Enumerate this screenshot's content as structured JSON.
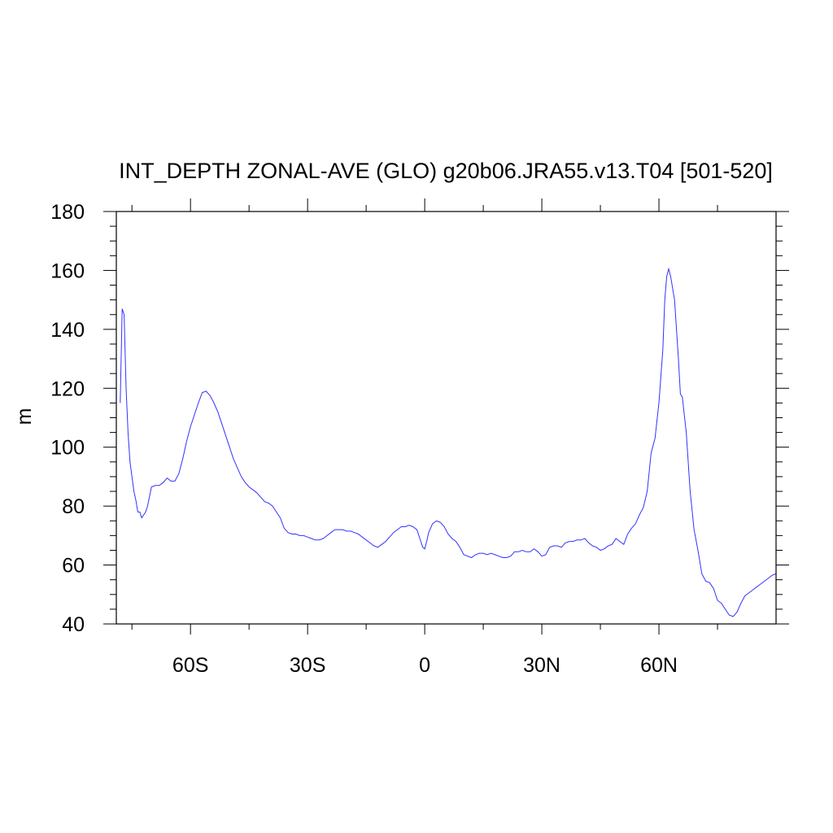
{
  "chart_data": {
    "type": "line",
    "title": "INT_DEPTH ZONAL-AVE (GLO) g20b06.JRA55.v13.T04 [501-520]",
    "xlabel": "",
    "ylabel": "m",
    "xlim": [
      -79,
      90
    ],
    "ylim": [
      40,
      180
    ],
    "x_ticks": [
      {
        "value": -60,
        "label": "60S"
      },
      {
        "value": -30,
        "label": "30S"
      },
      {
        "value": 0,
        "label": "0"
      },
      {
        "value": 30,
        "label": "30N"
      },
      {
        "value": 60,
        "label": "60N"
      }
    ],
    "y_ticks": [
      {
        "value": 40,
        "label": "40"
      },
      {
        "value": 60,
        "label": "60"
      },
      {
        "value": 80,
        "label": "80"
      },
      {
        "value": 100,
        "label": "100"
      },
      {
        "value": 120,
        "label": "120"
      },
      {
        "value": 140,
        "label": "140"
      },
      {
        "value": 160,
        "label": "160"
      },
      {
        "value": 180,
        "label": "180"
      }
    ],
    "grid": false,
    "series": [
      {
        "color": "#3232ff",
        "x": [
          -78,
          -77.5,
          -77,
          -76.5,
          -76,
          -75.5,
          -75,
          -74.5,
          -74,
          -73.5,
          -73,
          -72.5,
          -72,
          -71.5,
          -71,
          -70,
          -69,
          -68,
          -67,
          -66,
          -65,
          -64,
          -63,
          -62,
          -61,
          -60,
          -59,
          -58,
          -57,
          -56,
          -55,
          -54,
          -53,
          -52,
          -51,
          -50,
          -49,
          -48,
          -47,
          -46,
          -45,
          -44,
          -43,
          -42,
          -41,
          -40,
          -39,
          -38,
          -37,
          -36,
          -35,
          -34,
          -33,
          -32,
          -31,
          -30,
          -29,
          -28,
          -27,
          -26,
          -25,
          -24,
          -23,
          -22,
          -21,
          -20,
          -19,
          -18,
          -17,
          -16,
          -15,
          -14,
          -13,
          -12,
          -11,
          -10,
          -9,
          -8,
          -7,
          -6,
          -5,
          -4,
          -3,
          -2,
          -1,
          -0.5,
          0,
          0.5,
          1,
          2,
          3,
          4,
          5,
          6,
          7,
          8,
          9,
          10,
          11,
          12,
          13,
          14,
          15,
          16,
          17,
          18,
          19,
          20,
          21,
          22,
          23,
          24,
          25,
          26,
          27,
          28,
          29,
          30,
          31,
          32,
          33,
          34,
          35,
          36,
          37,
          38,
          39,
          40,
          41,
          42,
          43,
          44,
          45,
          46,
          47,
          48,
          49,
          50,
          51,
          52,
          53,
          54,
          55,
          56,
          57,
          58,
          59,
          60,
          61,
          61.5,
          62,
          62.5,
          63,
          64,
          65,
          65.5,
          66,
          67,
          68,
          69,
          70,
          71,
          72,
          73,
          74,
          75,
          76,
          77,
          78,
          79,
          80,
          81,
          82,
          83,
          84,
          85,
          86,
          87,
          88,
          89,
          90
        ],
        "y": [
          115,
          147,
          145,
          120,
          105,
          95,
          90,
          85,
          82,
          78,
          78,
          76,
          77,
          78,
          80,
          86.5,
          87,
          87,
          88,
          89.5,
          88.5,
          88.5,
          91,
          96,
          102,
          107,
          111,
          115,
          118.5,
          119,
          117.5,
          115,
          112,
          108,
          104,
          100,
          96,
          93,
          90,
          88,
          86.5,
          85.5,
          84.5,
          83,
          81.5,
          81,
          80,
          78,
          76,
          72.5,
          71,
          70.5,
          70.5,
          70,
          70,
          69.5,
          69,
          68.5,
          68.5,
          69,
          70,
          71,
          72,
          72,
          72,
          71.5,
          71.5,
          71,
          70.5,
          69.5,
          68.5,
          67.5,
          66.5,
          66,
          67,
          68,
          69.5,
          71,
          72,
          73,
          73,
          73.5,
          73,
          72,
          68,
          66,
          65.5,
          68,
          71,
          74,
          75,
          74.5,
          73,
          70.5,
          69,
          68,
          66,
          63.5,
          63,
          62.5,
          63.5,
          64,
          64,
          63.5,
          64,
          63.5,
          63,
          62.5,
          62.5,
          63,
          64.5,
          64.5,
          65,
          64.5,
          64.5,
          65.5,
          64.5,
          63,
          63.5,
          66,
          66.5,
          66.5,
          66,
          67.5,
          68,
          68,
          68.5,
          68.5,
          69,
          67.5,
          66.5,
          66,
          65,
          65.5,
          66.5,
          67,
          69,
          68,
          67,
          70.5,
          72.5,
          74,
          77,
          79.5,
          85,
          98,
          103,
          115,
          133,
          150,
          158,
          160.5,
          158,
          150,
          130,
          118,
          117,
          105,
          85,
          72,
          65,
          57,
          54.5,
          54,
          52,
          48,
          47,
          45,
          43,
          42.5,
          44,
          47,
          49.5,
          50.5,
          51.5,
          52.5,
          53.5,
          54.5,
          55.5,
          56.5,
          57
        ]
      }
    ]
  }
}
